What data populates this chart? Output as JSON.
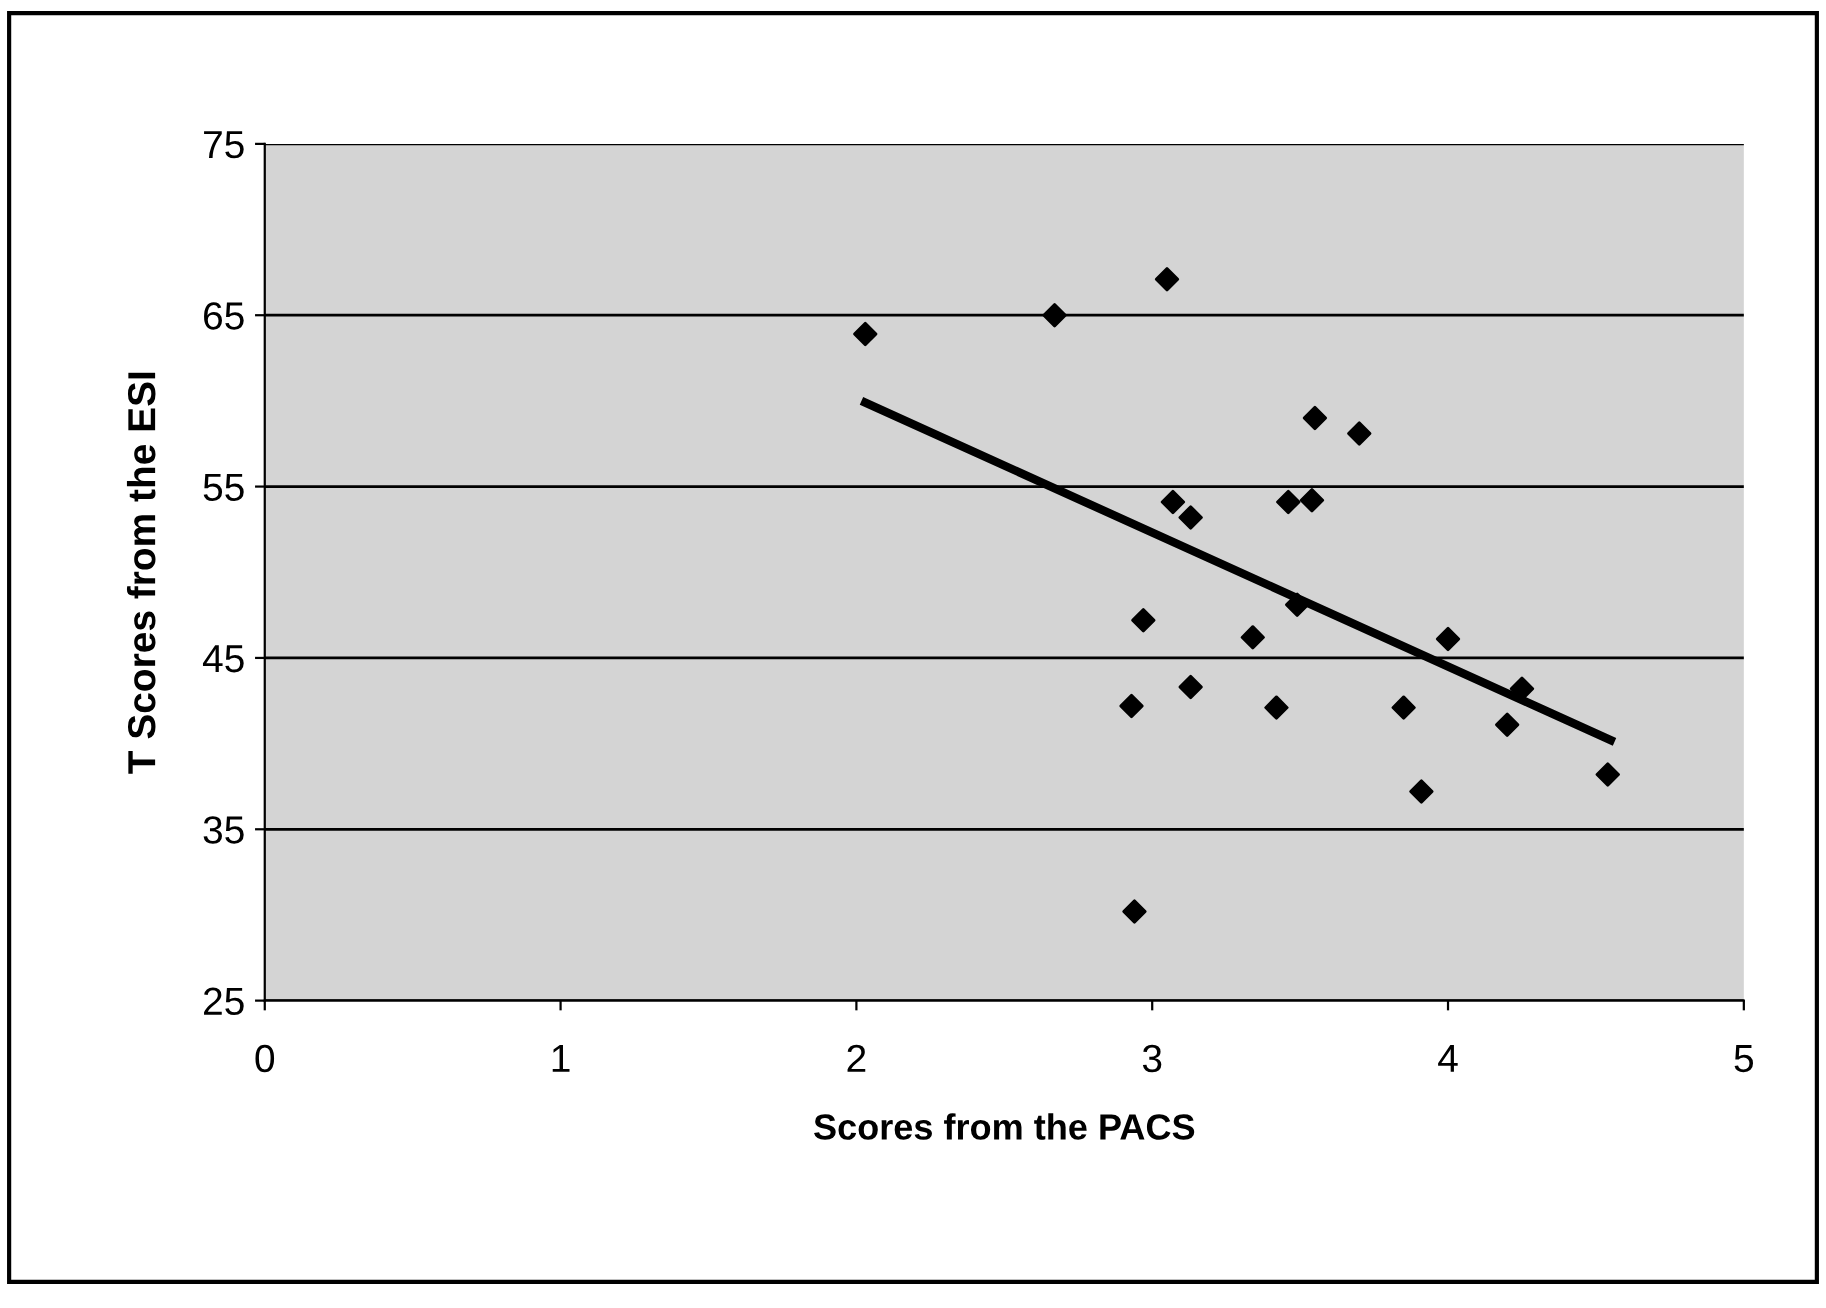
{
  "chart_data": {
    "type": "scatter",
    "xlabel": "Scores from the PACS",
    "ylabel": "T Scores from the ESI",
    "xlim": [
      0,
      5
    ],
    "xticks": [
      0,
      1,
      2,
      3,
      4,
      5
    ],
    "ylim": [
      25,
      75
    ],
    "yticks": [
      25,
      35,
      45,
      55,
      65,
      75
    ],
    "grid": "y",
    "marker": "diamond",
    "series": [
      {
        "color": "#000000",
        "x": [
          2.03,
          2.67,
          3.05,
          3.55,
          3.7,
          3.07,
          3.13,
          3.46,
          3.54,
          3.49,
          2.97,
          3.34,
          4.0,
          4.25,
          3.13,
          2.93,
          3.42,
          3.85,
          4.2,
          4.54,
          3.91,
          2.94
        ],
        "values": [
          63.9,
          65.0,
          67.1,
          59.0,
          58.1,
          54.1,
          53.2,
          54.1,
          54.2,
          48.1,
          47.2,
          46.2,
          46.1,
          43.2,
          43.3,
          42.2,
          42.1,
          42.1,
          41.1,
          38.2,
          37.2,
          30.2
        ]
      },
      {
        "type": "line",
        "color": "#000000",
        "marker": "none",
        "x": [
          2.03,
          4.55
        ],
        "values": [
          59.9,
          40.2
        ]
      }
    ]
  }
}
